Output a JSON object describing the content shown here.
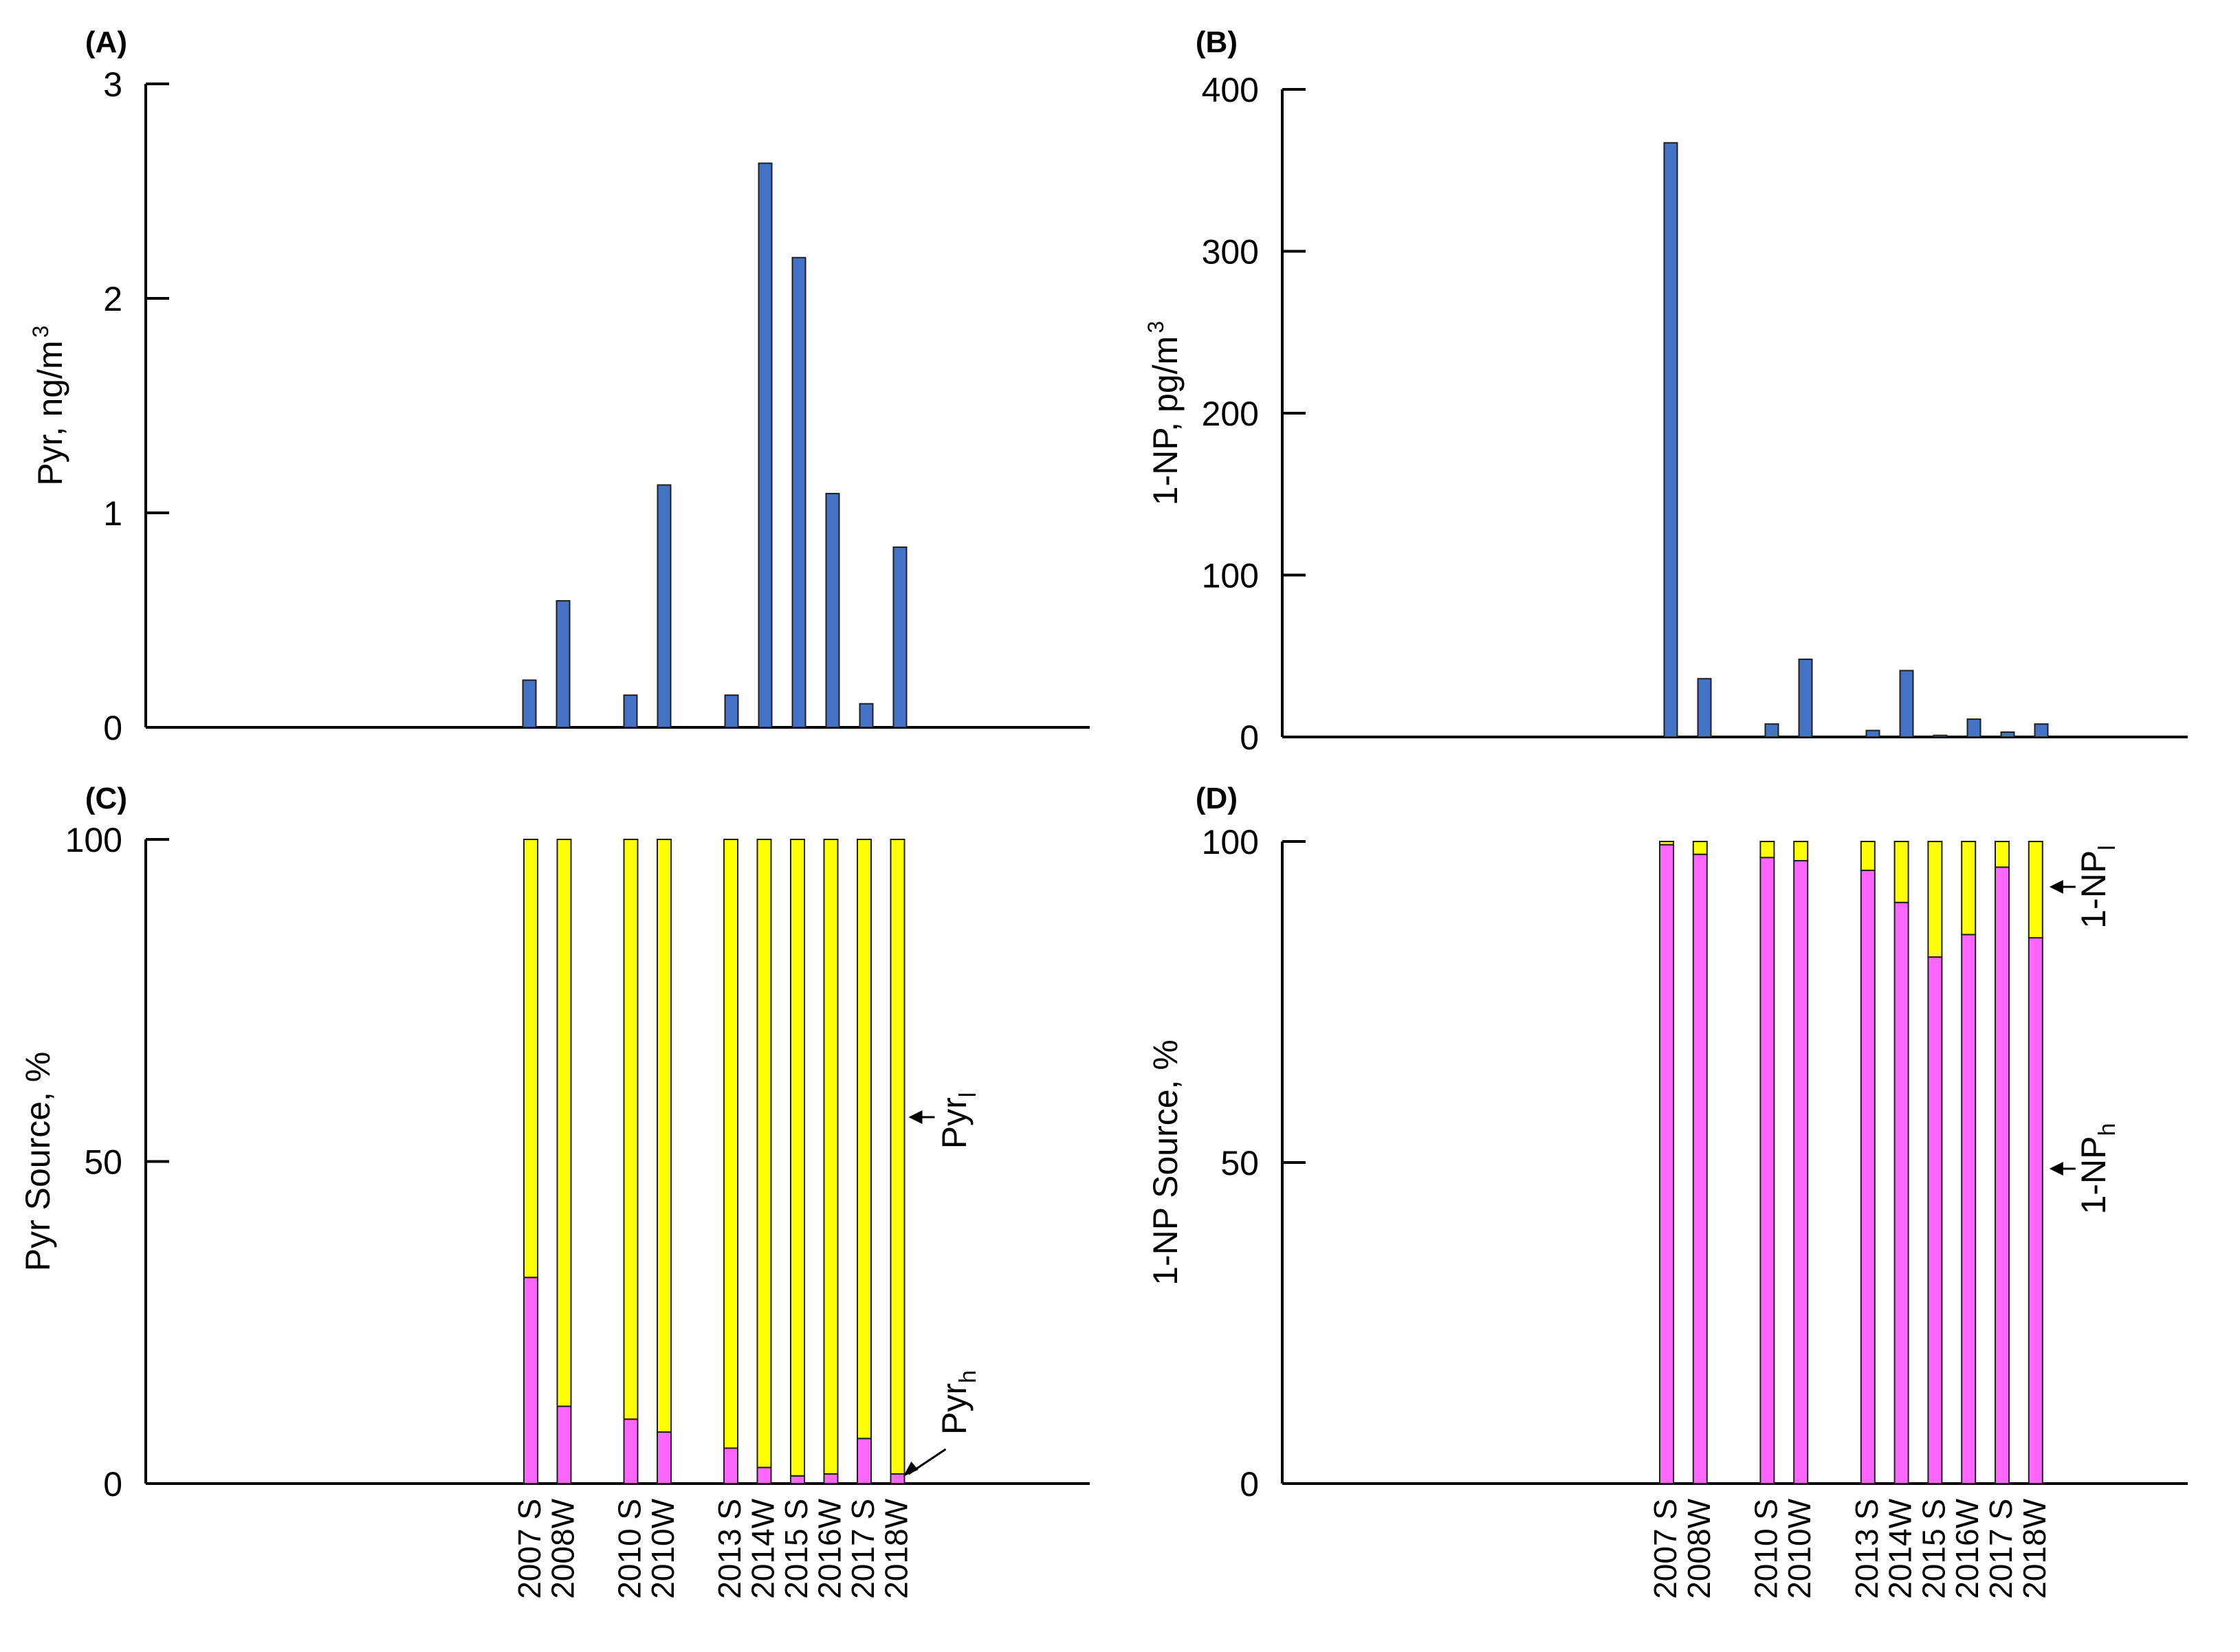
{
  "chart_data": [
    {
      "id": "A",
      "type": "bar",
      "panel_label": "(A)",
      "title": "",
      "xlabel": "",
      "ylabel": "Pyr, ng/m³",
      "ylim": [
        0,
        3
      ],
      "yticks": [
        0,
        1,
        2,
        3
      ],
      "categories": [
        "2007 S",
        "2008W",
        "2010 S",
        "2010W",
        "2013 S",
        "2014W",
        "2015 S",
        "2016W",
        "2017 S",
        "2018W"
      ],
      "values": [
        0.22,
        0.59,
        0.15,
        1.13,
        0.15,
        2.63,
        2.19,
        1.09,
        0.11,
        0.84
      ],
      "color": "#4472C4"
    },
    {
      "id": "B",
      "type": "bar",
      "panel_label": "(B)",
      "title": "",
      "xlabel": "",
      "ylabel": "1-NP, pg/m³",
      "ylim": [
        0,
        400
      ],
      "yticks": [
        0,
        100,
        200,
        300,
        400
      ],
      "categories": [
        "2007 S",
        "2008W",
        "2010 S",
        "2010W",
        "2013 S",
        "2014W",
        "2015 S",
        "2016W",
        "2017 S",
        "2018W"
      ],
      "values": [
        367,
        36,
        8,
        48,
        4,
        41,
        1,
        11,
        3,
        8
      ],
      "color": "#4472C4"
    },
    {
      "id": "C",
      "type": "stacked_bar",
      "panel_label": "(C)",
      "title": "",
      "xlabel": "",
      "ylabel": "Pyr Source, %",
      "ylim": [
        0,
        100
      ],
      "yticks": [
        0,
        50,
        100
      ],
      "categories": [
        "2007 S",
        "2008W",
        "2010 S",
        "2010W",
        "2013 S",
        "2014W",
        "2015 S",
        "2016W",
        "2017 S",
        "2018W"
      ],
      "series": [
        {
          "name": "Pyr_h",
          "color": "#FF66FF",
          "values": [
            32,
            12,
            10,
            8,
            5.5,
            2.5,
            1.2,
            1.5,
            7,
            1.5
          ]
        },
        {
          "name": "Pyr_l",
          "color": "#FFFF00",
          "values": [
            68,
            88,
            90,
            92,
            94.5,
            97.5,
            98.8,
            98.5,
            93,
            98.5
          ]
        }
      ],
      "annotations": [
        {
          "base": "Pyr",
          "sub": "l",
          "series": "Pyr_l"
        },
        {
          "base": "Pyr",
          "sub": "h",
          "series": "Pyr_h"
        }
      ]
    },
    {
      "id": "D",
      "type": "stacked_bar",
      "panel_label": "(D)",
      "title": "",
      "xlabel": "",
      "ylabel": "1-NP Source, %",
      "ylim": [
        0,
        100
      ],
      "yticks": [
        0,
        50,
        100
      ],
      "categories": [
        "2007 S",
        "2008W",
        "2010 S",
        "2010W",
        "2013 S",
        "2014W",
        "2015 S",
        "2016W",
        "2017 S",
        "2018W"
      ],
      "series": [
        {
          "name": "1-NP_h",
          "color": "#FF66FF",
          "values": [
            99.5,
            98,
            97.5,
            97,
            95.5,
            90.5,
            82,
            85.5,
            96,
            85
          ]
        },
        {
          "name": "1-NP_l",
          "color": "#FFFF00",
          "values": [
            0.5,
            2,
            2.5,
            3,
            4.5,
            9.5,
            18,
            14.5,
            4,
            15
          ]
        }
      ],
      "annotations": [
        {
          "base": "1-NP",
          "sub": "l",
          "series": "1-NP_l"
        },
        {
          "base": "1-NP",
          "sub": "h",
          "series": "1-NP_h"
        }
      ]
    }
  ]
}
